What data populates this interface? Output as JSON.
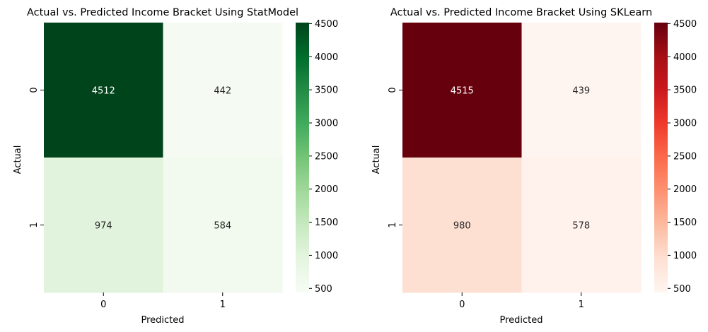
{
  "chart_data": [
    {
      "type": "heatmap",
      "title": "Actual vs. Predicted Income Bracket Using StatModel",
      "xlabel": "Predicted",
      "ylabel": "Actual",
      "x_categories": [
        "0",
        "1"
      ],
      "y_categories": [
        "0",
        "1"
      ],
      "values": [
        [
          4512,
          442
        ],
        [
          974,
          584
        ]
      ],
      "colormap": "Greens",
      "color_range": [
        439,
        4515
      ],
      "colorbar_ticks": [
        500,
        1000,
        1500,
        2000,
        2500,
        3000,
        3500,
        4000,
        4500
      ],
      "cell_colors": [
        [
          "#00441b",
          "#f5fbf3"
        ],
        [
          "#e1f3dc",
          "#f2faef"
        ]
      ],
      "colorbar_colors": [
        "#f7fcf5",
        "#e5f5e0",
        "#c7e9c0",
        "#a1d99b",
        "#74c476",
        "#41ab5d",
        "#238b45",
        "#006d2c",
        "#00441b"
      ]
    },
    {
      "type": "heatmap",
      "title": "Actual vs. Predicted Income Bracket Using SKLearn",
      "xlabel": "Predicted",
      "ylabel": "Actual",
      "x_categories": [
        "0",
        "1"
      ],
      "y_categories": [
        "0",
        "1"
      ],
      "values": [
        [
          4515,
          439
        ],
        [
          980,
          578
        ]
      ],
      "colormap": "Reds",
      "color_range": [
        439,
        4515
      ],
      "colorbar_ticks": [
        500,
        1000,
        1500,
        2000,
        2500,
        3000,
        3500,
        4000,
        4500
      ],
      "cell_colors": [
        [
          "#67000d",
          "#fff5f0"
        ],
        [
          "#fee0d2",
          "#fff2ec"
        ]
      ],
      "colorbar_colors": [
        "#fff5f0",
        "#fee0d2",
        "#fcbba1",
        "#fc9272",
        "#fb6a4a",
        "#ef3b2c",
        "#cb181d",
        "#a50f15",
        "#67000d"
      ]
    }
  ]
}
